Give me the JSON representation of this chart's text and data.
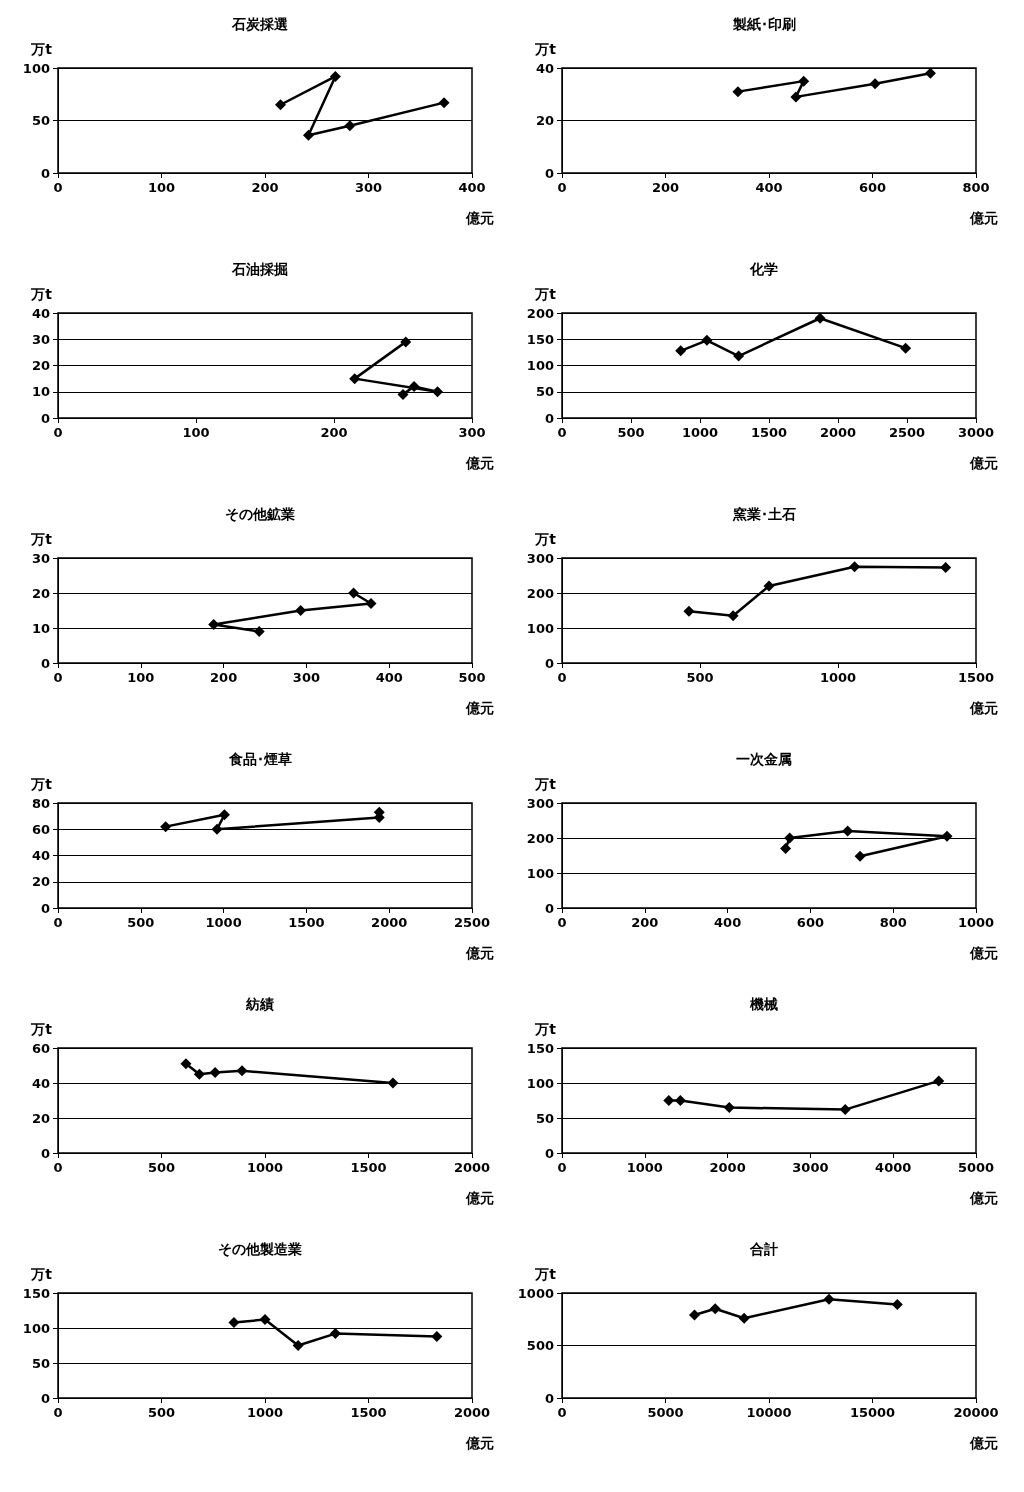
{
  "chart_data": [
    {
      "type": "line",
      "title": "石炭採選",
      "xlabel": "億元",
      "ylabel": "万t",
      "x": [
        215,
        268,
        242,
        282,
        373
      ],
      "values": [
        65,
        92,
        36,
        45,
        67
      ],
      "color": "#000000",
      "marker": "diamond",
      "line_style": "solid",
      "grid": "y",
      "xlim": [
        0,
        400
      ],
      "ylim": [
        0,
        100
      ],
      "xticks": [
        0,
        100,
        200,
        300,
        400
      ],
      "yticks": [
        0,
        50,
        100
      ]
    },
    {
      "type": "line",
      "title": "製紙･印刷",
      "xlabel": "億元",
      "ylabel": "万t",
      "x": [
        340,
        467,
        452,
        605,
        712
      ],
      "values": [
        31,
        35,
        29,
        34,
        38
      ],
      "color": "#000000",
      "marker": "diamond",
      "line_style": "solid",
      "grid": "y",
      "xlim": [
        0,
        800
      ],
      "ylim": [
        0,
        40
      ],
      "xticks": [
        0,
        200,
        400,
        600,
        800
      ],
      "yticks": [
        0,
        20,
        40
      ]
    },
    {
      "type": "line",
      "title": "石油採掘",
      "xlabel": "億元",
      "ylabel": "万t",
      "x": [
        252,
        215,
        275,
        258,
        250
      ],
      "values": [
        29,
        15,
        10,
        12,
        9
      ],
      "color": "#000000",
      "marker": "diamond",
      "line_style": "solid",
      "grid": "y",
      "xlim": [
        0,
        300
      ],
      "ylim": [
        0,
        40
      ],
      "xticks": [
        0,
        100,
        200,
        300
      ],
      "yticks": [
        0,
        10,
        20,
        30,
        40
      ]
    },
    {
      "type": "line",
      "title": "化学",
      "xlabel": "億元",
      "ylabel": "万t",
      "x": [
        860,
        1050,
        1280,
        1870,
        2490
      ],
      "values": [
        128,
        148,
        118,
        190,
        133
      ],
      "color": "#000000",
      "marker": "diamond",
      "line_style": "solid",
      "grid": "y",
      "xlim": [
        0,
        3000
      ],
      "ylim": [
        0,
        200
      ],
      "xticks": [
        0,
        500,
        1000,
        1500,
        2000,
        2500,
        3000
      ],
      "yticks": [
        0,
        50,
        100,
        150,
        200
      ]
    },
    {
      "type": "line",
      "title": "その他鉱業",
      "xlabel": "億元",
      "ylabel": "万t",
      "x": [
        243,
        188,
        293,
        378,
        357
      ],
      "values": [
        9,
        11,
        15,
        17,
        20
      ],
      "color": "#000000",
      "marker": "diamond",
      "line_style": "solid",
      "grid": "y",
      "xlim": [
        0,
        500
      ],
      "ylim": [
        0,
        30
      ],
      "xticks": [
        0,
        100,
        200,
        300,
        400,
        500
      ],
      "yticks": [
        0,
        10,
        20,
        30
      ]
    },
    {
      "type": "line",
      "title": "窯業･土石",
      "xlabel": "億元",
      "ylabel": "万t",
      "x": [
        460,
        620,
        750,
        1060,
        1390
      ],
      "values": [
        148,
        135,
        220,
        275,
        273
      ],
      "color": "#000000",
      "marker": "diamond",
      "line_style": "solid",
      "grid": "y",
      "xlim": [
        0,
        1500
      ],
      "ylim": [
        0,
        300
      ],
      "xticks": [
        0,
        500,
        1000,
        1500
      ],
      "yticks": [
        0,
        100,
        200,
        300
      ]
    },
    {
      "type": "line",
      "title": "食品･煙草",
      "xlabel": "億元",
      "ylabel": "万t",
      "x": [
        650,
        1005,
        960,
        1940,
        1940
      ],
      "values": [
        62,
        71,
        60,
        69,
        73
      ],
      "color": "#000000",
      "marker": "diamond",
      "line_style": "solid",
      "grid": "y",
      "xlim": [
        0,
        2500
      ],
      "ylim": [
        0,
        80
      ],
      "xticks": [
        0,
        500,
        1000,
        1500,
        2000,
        2500
      ],
      "yticks": [
        0,
        20,
        40,
        60,
        80
      ]
    },
    {
      "type": "line",
      "title": "一次金属",
      "xlabel": "億元",
      "ylabel": "万t",
      "x": [
        540,
        550,
        690,
        930,
        720
      ],
      "values": [
        170,
        200,
        220,
        205,
        148
      ],
      "color": "#000000",
      "marker": "diamond",
      "line_style": "solid",
      "grid": "y",
      "xlim": [
        0,
        1000
      ],
      "ylim": [
        0,
        300
      ],
      "xticks": [
        0,
        200,
        400,
        600,
        800,
        1000
      ],
      "yticks": [
        0,
        100,
        200,
        300
      ]
    },
    {
      "type": "line",
      "title": "紡績",
      "xlabel": "億元",
      "ylabel": "万t",
      "x": [
        618,
        683,
        759,
        889,
        1618
      ],
      "values": [
        51,
        45,
        46,
        47,
        40
      ],
      "color": "#000000",
      "marker": "diamond",
      "line_style": "solid",
      "grid": "y",
      "xlim": [
        0,
        2000
      ],
      "ylim": [
        0,
        60
      ],
      "xticks": [
        0,
        500,
        1000,
        1500,
        2000
      ],
      "yticks": [
        0,
        20,
        40,
        60
      ]
    },
    {
      "type": "line",
      "title": "機械",
      "xlabel": "億元",
      "ylabel": "万t",
      "x": [
        1290,
        1430,
        2020,
        3420,
        4550
      ],
      "values": [
        75,
        75,
        65,
        62,
        103
      ],
      "color": "#000000",
      "marker": "diamond",
      "line_style": "solid",
      "grid": "y",
      "xlim": [
        0,
        5000
      ],
      "ylim": [
        0,
        150
      ],
      "xticks": [
        0,
        1000,
        2000,
        3000,
        4000,
        5000
      ],
      "yticks": [
        0,
        50,
        100,
        150
      ]
    },
    {
      "type": "line",
      "title": "その他製造業",
      "xlabel": "億元",
      "ylabel": "万t",
      "x": [
        850,
        1000,
        1160,
        1340,
        1830
      ],
      "values": [
        108,
        112,
        75,
        92,
        88
      ],
      "color": "#000000",
      "marker": "diamond",
      "line_style": "solid",
      "grid": "y",
      "xlim": [
        0,
        2000
      ],
      "ylim": [
        0,
        150
      ],
      "xticks": [
        0,
        500,
        1000,
        1500,
        2000
      ],
      "yticks": [
        0,
        50,
        100,
        150
      ]
    },
    {
      "type": "line",
      "title": "合計",
      "xlabel": "億元",
      "ylabel": "万t",
      "x": [
        6400,
        7400,
        8800,
        12900,
        16200
      ],
      "values": [
        790,
        850,
        760,
        940,
        890
      ],
      "color": "#000000",
      "marker": "diamond",
      "line_style": "solid",
      "grid": "y",
      "xlim": [
        0,
        20000
      ],
      "ylim": [
        0,
        1000
      ],
      "xticks": [
        0,
        5000,
        10000,
        15000,
        20000
      ],
      "yticks": [
        0,
        500,
        1000
      ]
    }
  ]
}
